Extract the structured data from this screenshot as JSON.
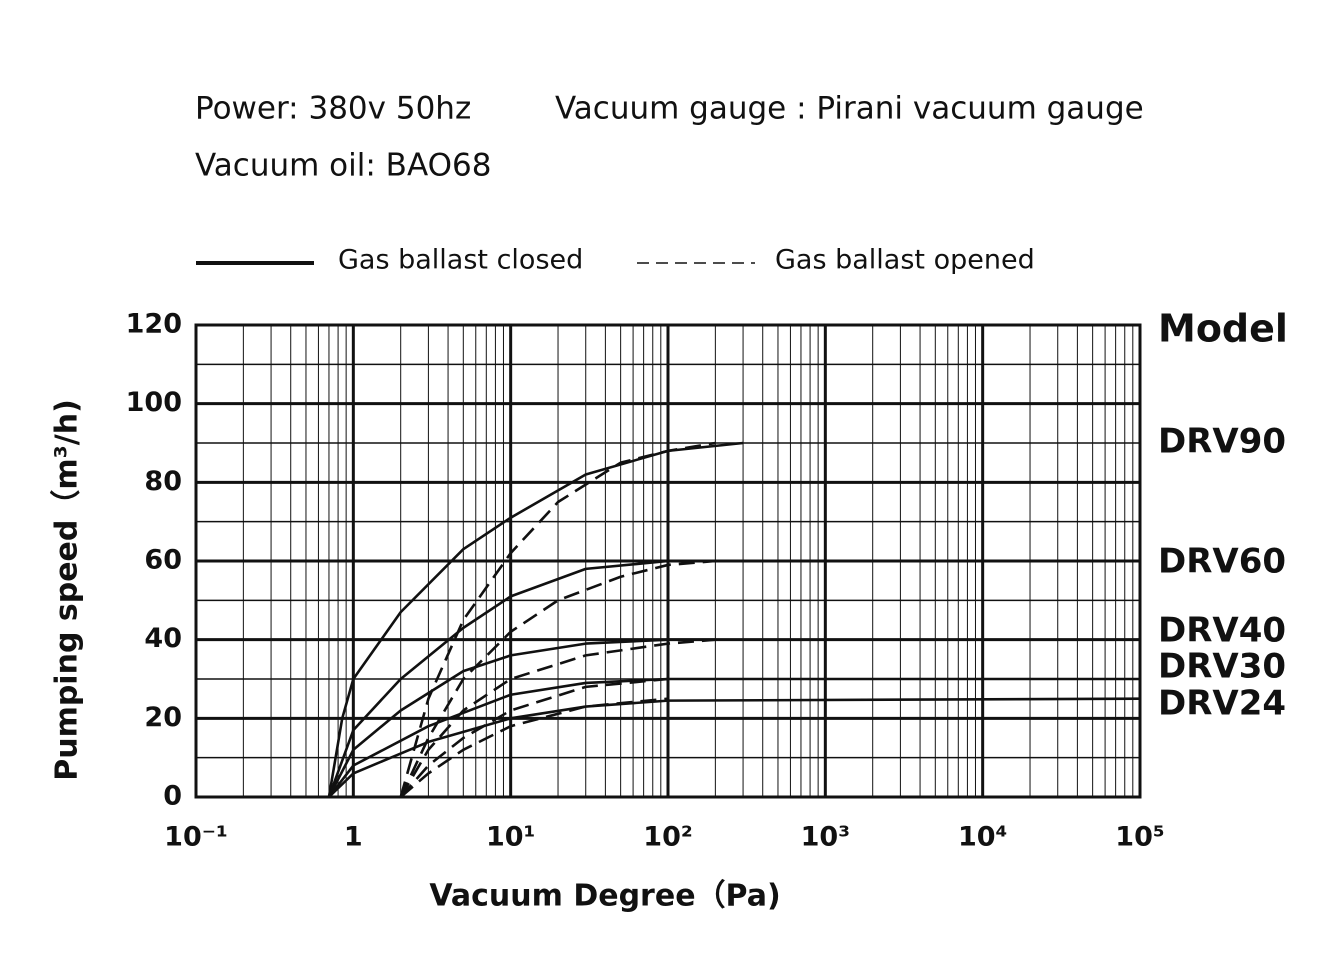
{
  "chart_data": {
    "type": "line",
    "header": [
      "Power: 380v 50hz",
      "Vacuum gauge : Pirani vacuum gauge",
      "Vacuum oil: BAO68"
    ],
    "legend": [
      {
        "label": "Gas ballast closed",
        "dashed": false
      },
      {
        "label": "Gas ballast opened",
        "dashed": true
      }
    ],
    "x_label": "Vacuum Degree（Pa)",
    "y_label": "Pumping speed（m³/h)",
    "model_title": "Model",
    "log_x": true,
    "grid": true,
    "color": "#111111",
    "xlim": [
      0.1,
      100000
    ],
    "xticks": [
      {
        "value": 0.1,
        "label": "10⁻¹"
      },
      1,
      {
        "value": 10,
        "label": "10¹"
      },
      {
        "value": 100,
        "label": "10²"
      },
      {
        "value": 1000,
        "label": "10³"
      },
      {
        "value": 10000,
        "label": "10⁴"
      },
      {
        "value": 100000,
        "label": "10⁵"
      }
    ],
    "ylim": [
      0,
      120
    ],
    "yticks": [
      0,
      20,
      40,
      60,
      80,
      100,
      120
    ],
    "models": [
      {
        "name": "DRV90",
        "closed": {
          "x": [
            0.7,
            0.85,
            1,
            2,
            5,
            10,
            30,
            100,
            300
          ],
          "values": [
            0,
            20,
            30,
            47,
            63,
            71,
            82,
            88,
            90
          ]
        },
        "opened": {
          "x": [
            2,
            3,
            5,
            10,
            20,
            50,
            100,
            200
          ],
          "values": [
            0,
            25,
            45,
            62,
            75,
            85,
            88,
            90
          ]
        }
      },
      {
        "name": "DRV60",
        "closed": {
          "x": [
            0.7,
            1,
            2,
            5,
            10,
            30,
            100,
            200
          ],
          "values": [
            0,
            17,
            30,
            43,
            51,
            58,
            60,
            60
          ]
        },
        "opened": {
          "x": [
            2,
            3,
            5,
            10,
            20,
            50,
            100,
            200
          ],
          "values": [
            0,
            15,
            30,
            42,
            50,
            56,
            59,
            60
          ]
        }
      },
      {
        "name": "DRV40",
        "closed": {
          "x": [
            0.7,
            1,
            2,
            5,
            10,
            30,
            100,
            200
          ],
          "values": [
            0,
            12,
            22,
            32,
            36,
            39,
            40,
            40
          ]
        },
        "opened": {
          "x": [
            2,
            3,
            5,
            10,
            30,
            100,
            200
          ],
          "values": [
            0,
            12,
            22,
            30,
            36,
            39,
            40
          ]
        }
      },
      {
        "name": "DRV30",
        "closed": {
          "x": [
            0.7,
            1,
            3,
            10,
            30,
            100,
            100000
          ],
          "values": [
            0,
            8,
            18,
            26,
            29,
            30,
            30
          ]
        },
        "opened": {
          "x": [
            2,
            3,
            5,
            10,
            30,
            100
          ],
          "values": [
            0,
            8,
            15,
            22,
            28,
            30
          ]
        }
      },
      {
        "name": "DRV24",
        "closed": {
          "x": [
            0.7,
            1,
            3,
            10,
            30,
            100,
            100000
          ],
          "values": [
            0,
            6,
            14,
            20,
            23,
            24.5,
            25
          ]
        },
        "opened": {
          "x": [
            2,
            3,
            5,
            10,
            30,
            100
          ],
          "values": [
            0,
            6,
            12,
            18,
            23,
            25
          ]
        }
      }
    ]
  }
}
